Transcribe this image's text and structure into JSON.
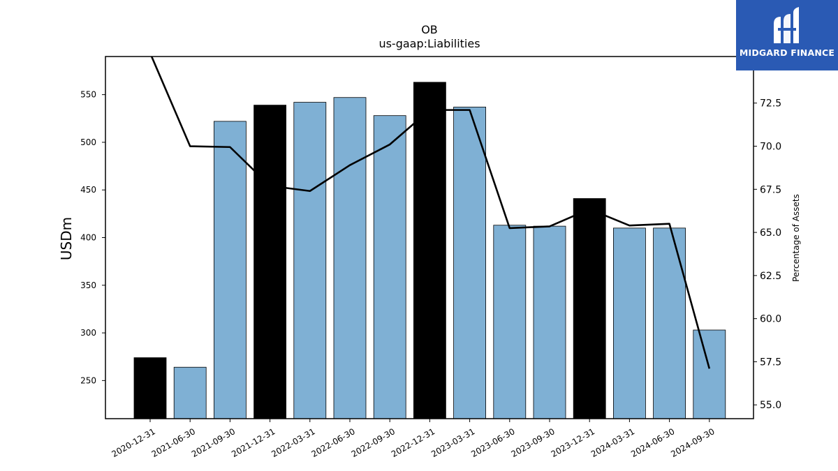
{
  "brand": {
    "name": "MIDGARD FINANCE"
  },
  "colors": {
    "bar_default": "#7fb0d4",
    "bar_highlight": "#000000",
    "line": "#000000"
  },
  "chart_data": {
    "type": "bar",
    "title": "OB",
    "subtitle": "us-gaap:Liabilities",
    "ylabel": "USDm",
    "y2label": "Percentage of Assets",
    "ylim": [
      210,
      590
    ],
    "y2lim": [
      54.2,
      75.2
    ],
    "yticks": [
      250,
      300,
      350,
      400,
      450,
      500,
      550
    ],
    "y2ticks": [
      "55.0",
      "57.5",
      "60.0",
      "62.5",
      "65.0",
      "67.5",
      "70.0",
      "72.5"
    ],
    "categories": [
      "2020-12-31",
      "2021-06-30",
      "2021-09-30",
      "2021-12-31",
      "2022-03-31",
      "2022-06-30",
      "2022-09-30",
      "2022-12-31",
      "2023-03-31",
      "2023-06-30",
      "2023-09-30",
      "2023-12-31",
      "2024-03-31",
      "2024-06-30",
      "2024-09-30"
    ],
    "series": [
      {
        "type": "bar",
        "values": [
          274,
          264,
          522,
          539,
          542,
          547,
          528,
          563,
          537,
          413,
          412,
          441,
          410,
          410,
          303
        ],
        "highlight": [
          true,
          false,
          false,
          true,
          false,
          false,
          false,
          true,
          false,
          false,
          false,
          true,
          false,
          false,
          false
        ]
      },
      {
        "type": "line",
        "axis": "right",
        "values": [
          75.4,
          70.0,
          69.95,
          67.7,
          67.4,
          68.9,
          70.1,
          72.1,
          72.1,
          65.25,
          65.35,
          66.35,
          65.4,
          65.5,
          57.1
        ]
      }
    ],
    "grid": false
  }
}
